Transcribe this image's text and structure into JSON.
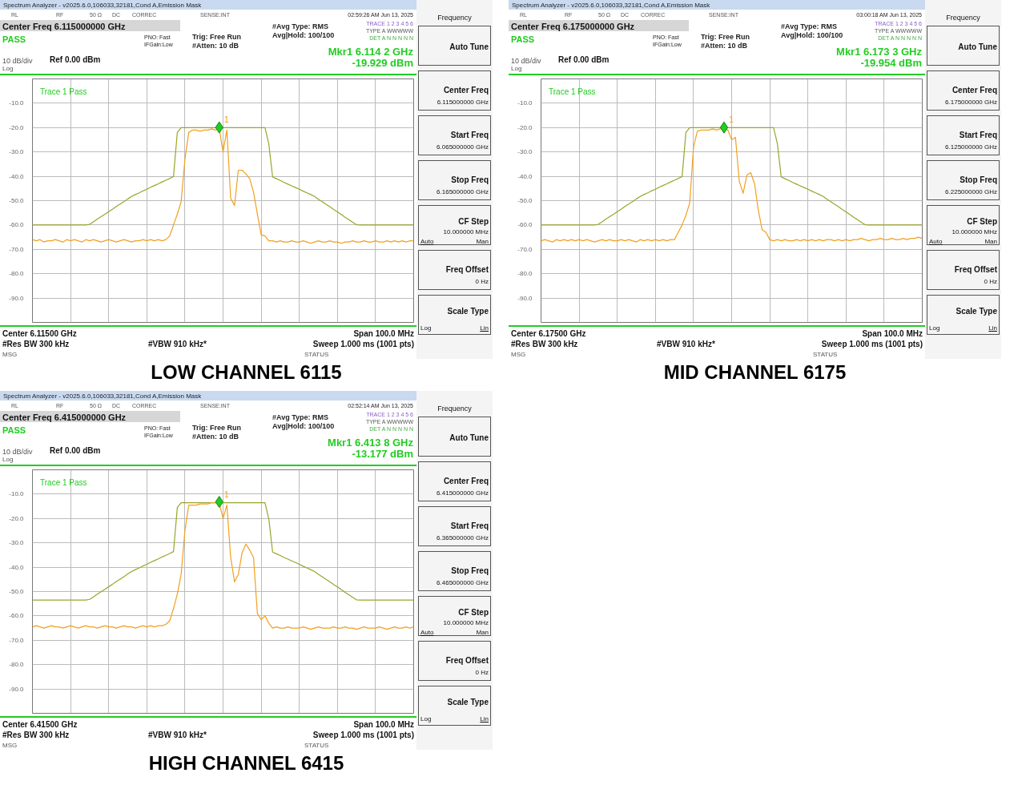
{
  "chart_data": [
    {
      "type": "line",
      "title": "LOW CHANNEL 6115",
      "categories": [
        null,
        null,
        null,
        null,
        null,
        null,
        null,
        null,
        null,
        null,
        null,
        null,
        null,
        null,
        null,
        null,
        null,
        null,
        null,
        null,
        null,
        null,
        null,
        null,
        null,
        null,
        null,
        null,
        null,
        null,
        null,
        null,
        null,
        null,
        null,
        null,
        null,
        null,
        null,
        null,
        null,
        null,
        null,
        null,
        null,
        null,
        null,
        null,
        null,
        null,
        null,
        null,
        null,
        null,
        null,
        null,
        null,
        null,
        null,
        null,
        null,
        null,
        null,
        null,
        null,
        null,
        null,
        null,
        null,
        null,
        null,
        null,
        null,
        null,
        null,
        null,
        null,
        null,
        null,
        null,
        null,
        null,
        null,
        null,
        null,
        null,
        null,
        null,
        null,
        null,
        null,
        null,
        null,
        null,
        null,
        null,
        null,
        null,
        null,
        null,
        null
      ],
      "ylim": [
        -100,
        0
      ],
      "yticks": [
        {
          "value": -10,
          "label": "-10.0"
        },
        {
          "value": -20,
          "label": "-20.0"
        },
        {
          "value": -30,
          "label": "-30.0"
        },
        {
          "value": -40,
          "label": "-40.0"
        },
        {
          "value": -50,
          "label": "-50.0"
        },
        {
          "value": -60,
          "label": "-60.0"
        },
        {
          "value": -70,
          "label": "-70.0"
        },
        {
          "value": -80,
          "label": "-80.0"
        },
        {
          "value": -90,
          "label": "-90.0"
        }
      ],
      "tick_labels": "y",
      "grid": true,
      "series": [
        {
          "color": "#9aa52a",
          "values": [
            -60,
            -60,
            -60,
            -60,
            -60,
            -60,
            -60,
            -60,
            -60,
            -60,
            -60,
            -60,
            -60,
            -60,
            -60,
            -59.7,
            -58.7,
            -57.6,
            -56.6,
            -55.6,
            -54.5,
            -53.5,
            -52.4,
            -51.4,
            -50.4,
            -49.3,
            -48.3,
            -47.5,
            -46.8,
            -46.0,
            -45.3,
            -44.5,
            -43.8,
            -43.1,
            -42.3,
            -41.6,
            -40.9,
            -40.1,
            -22,
            -20,
            -20,
            -20,
            -20,
            -20,
            -20,
            -20,
            -20,
            -20,
            -20,
            -20,
            -20,
            -20,
            -20,
            -20,
            -20,
            -20,
            -20,
            -20,
            -20,
            -20,
            -20,
            -20,
            -26.7,
            -40.3,
            -41.0,
            -41.7,
            -42.5,
            -43.2,
            -43.9,
            -44.6,
            -45.3,
            -46.1,
            -46.8,
            -47.5,
            -48.3,
            -49.4,
            -50.4,
            -51.5,
            -52.5,
            -53.6,
            -54.6,
            -55.7,
            -56.8,
            -57.8,
            -58.9,
            -59.9,
            -60,
            -60,
            -60,
            -60,
            -60,
            -60,
            -60,
            -60,
            -60,
            -60,
            -60,
            -60,
            -60,
            -60,
            -60
          ]
        },
        {
          "color": "#f2a01e",
          "values": [
            -66,
            -66.5,
            -66,
            -67,
            -66.5,
            -66.5,
            -66,
            -66.5,
            -67,
            -66,
            -66.5,
            -66,
            -66.5,
            -67,
            -66,
            -66.5,
            -66,
            -66.5,
            -67,
            -66.5,
            -66,
            -66.5,
            -67,
            -66.5,
            -66,
            -66.5,
            -67,
            -66.5,
            -66.5,
            -66,
            -66.5,
            -66,
            -66.5,
            -66,
            -66.5,
            -66,
            -64.5,
            -60,
            -55.5,
            -50.5,
            -33,
            -22,
            -21,
            -21,
            -21.5,
            -21,
            -21,
            -20.5,
            -21,
            -20.5,
            -30,
            -21,
            -49,
            -52,
            -37.5,
            -37.5,
            -39,
            -41,
            -46.5,
            -55.5,
            -64,
            -64.5,
            -66.5,
            -66.5,
            -67,
            -66.5,
            -67,
            -67,
            -66.5,
            -67,
            -67,
            -66.5,
            -67,
            -67.5,
            -67,
            -66.5,
            -67,
            -67,
            -66.5,
            -67,
            -67,
            -67.5,
            -67,
            -67,
            -66.5,
            -67,
            -67,
            -66.5,
            -67,
            -67,
            -66.5,
            -67,
            -67,
            -66.5,
            -67,
            -66.5,
            -67,
            -66.5,
            -67,
            -66.5,
            -66.5
          ]
        },
        {
          "type": "scatter",
          "marker": "diamond",
          "color": "#22cc22",
          "values": [
            null,
            null,
            null,
            null,
            null,
            null,
            null,
            null,
            null,
            null,
            null,
            null,
            null,
            null,
            null,
            null,
            null,
            null,
            null,
            null,
            null,
            null,
            null,
            null,
            null,
            null,
            null,
            null,
            null,
            null,
            null,
            null,
            null,
            null,
            null,
            null,
            null,
            null,
            null,
            null,
            null,
            null,
            null,
            null,
            null,
            null,
            null,
            null,
            null,
            -19.929,
            null,
            null,
            null,
            null,
            null,
            null,
            null,
            null,
            null,
            null,
            null,
            null,
            null,
            null,
            null,
            null,
            null,
            null,
            null,
            null,
            null,
            null,
            null,
            null,
            null,
            null,
            null,
            null,
            null,
            null,
            null,
            null,
            null,
            null,
            null,
            null,
            null,
            null,
            null,
            null,
            null,
            null,
            null,
            null,
            null,
            null,
            null,
            null,
            null,
            null,
            null
          ]
        }
      ],
      "annotations": [
        "Spectrum Analyzer - v2025.6.0,106033,32181,Cond A,Emission Mask",
        "RL",
        "RF",
        "50 Ω",
        "DC",
        "CORREC",
        "SENSE:INT",
        "02:59:26 AM Jun 13, 2025",
        "Center Freq 6.115000000 GHz",
        "PASS",
        "PNO: Fast",
        "IFGain:Low",
        "Trig: Free Run",
        "#Atten: 10 dB",
        "#Avg Type: RMS",
        "Avg|Hold: 100/100",
        "TRACE 1 2 3 4 5 6",
        "TYPE A WWWWW",
        "DET A N N N N N",
        "Mkr1 6.114 2 GHz",
        "-19.929 dBm",
        "10 dB/div",
        "Ref 0.00 dBm",
        "Log",
        "Trace 1 Pass",
        "Center 6.11500 GHz",
        "Span 100.0 MHz",
        "#Res BW 300 kHz",
        "#VBW 910 kHz*",
        "Sweep  1.000 ms (1001 pts)",
        "MSG",
        "STATUS",
        "Frequency",
        "Auto Tune",
        "Center Freq",
        "6.115000000 GHz",
        "Start Freq",
        "6.065000000 GHz",
        "Stop Freq",
        "6.165000000 GHz",
        "CF Step",
        "10.000000 MHz",
        "Auto",
        "Man",
        "Freq Offset",
        "0 Hz",
        "Scale Type",
        "Log",
        "Lin",
        "1"
      ]
    },
    {
      "type": "line",
      "title": "MID CHANNEL 6175",
      "categories": [
        null,
        null,
        null,
        null,
        null,
        null,
        null,
        null,
        null,
        null,
        null,
        null,
        null,
        null,
        null,
        null,
        null,
        null,
        null,
        null,
        null,
        null,
        null,
        null,
        null,
        null,
        null,
        null,
        null,
        null,
        null,
        null,
        null,
        null,
        null,
        null,
        null,
        null,
        null,
        null,
        null,
        null,
        null,
        null,
        null,
        null,
        null,
        null,
        null,
        null,
        null,
        null,
        null,
        null,
        null,
        null,
        null,
        null,
        null,
        null,
        null,
        null,
        null,
        null,
        null,
        null,
        null,
        null,
        null,
        null,
        null,
        null,
        null,
        null,
        null,
        null,
        null,
        null,
        null,
        null,
        null,
        null,
        null,
        null,
        null,
        null,
        null,
        null,
        null,
        null,
        null,
        null,
        null,
        null,
        null,
        null,
        null,
        null,
        null,
        null,
        null
      ],
      "ylim": [
        -100,
        0
      ],
      "yticks": [
        {
          "value": -10,
          "label": "-10.0"
        },
        {
          "value": -20,
          "label": "-20.0"
        },
        {
          "value": -30,
          "label": "-30.0"
        },
        {
          "value": -40,
          "label": "-40.0"
        },
        {
          "value": -50,
          "label": "-50.0"
        },
        {
          "value": -60,
          "label": "-60.0"
        },
        {
          "value": -70,
          "label": "-70.0"
        },
        {
          "value": -80,
          "label": "-80.0"
        },
        {
          "value": -90,
          "label": "-90.0"
        }
      ],
      "tick_labels": "y",
      "grid": true,
      "series": [
        {
          "color": "#9aa52a",
          "values": [
            -60,
            -60,
            -60,
            -60,
            -60,
            -60,
            -60,
            -60,
            -60,
            -60,
            -60,
            -60,
            -60,
            -60,
            -60,
            -59.7,
            -58.7,
            -57.6,
            -56.6,
            -55.6,
            -54.5,
            -53.5,
            -52.4,
            -51.4,
            -50.4,
            -49.3,
            -48.3,
            -47.5,
            -46.8,
            -46.0,
            -45.3,
            -44.5,
            -43.8,
            -43.1,
            -42.3,
            -41.6,
            -40.9,
            -40.1,
            -22,
            -20,
            -20,
            -20,
            -20,
            -20,
            -20,
            -20,
            -20,
            -20,
            -20,
            -20,
            -20,
            -20,
            -20,
            -20,
            -20,
            -20,
            -20,
            -20,
            -20,
            -20,
            -20,
            -20,
            -26.7,
            -40.3,
            -41.0,
            -41.7,
            -42.5,
            -43.2,
            -43.9,
            -44.6,
            -45.3,
            -46.1,
            -46.8,
            -47.5,
            -48.3,
            -49.4,
            -50.4,
            -51.5,
            -52.5,
            -53.6,
            -54.6,
            -55.7,
            -56.8,
            -57.8,
            -58.9,
            -59.9,
            -60,
            -60,
            -60,
            -60,
            -60,
            -60,
            -60,
            -60,
            -60,
            -60,
            -60,
            -60,
            -60,
            -60,
            -60
          ]
        },
        {
          "color": "#f2a01e",
          "values": [
            -66.5,
            -66,
            -66.5,
            -67,
            -66,
            -66.5,
            -66,
            -66.5,
            -66,
            -66.5,
            -66,
            -66.5,
            -66,
            -66.5,
            -67,
            -66.5,
            -66,
            -66.5,
            -66,
            -66.5,
            -66.5,
            -66,
            -66.5,
            -66,
            -66.5,
            -67,
            -66,
            -66.5,
            -66,
            -66.5,
            -66,
            -66.5,
            -66,
            -66.5,
            -66,
            -66,
            -63,
            -60,
            -56,
            -51,
            -28,
            -21.5,
            -21,
            -21,
            -21,
            -20.5,
            -21,
            -20.5,
            -20.5,
            -21,
            -25,
            -24,
            -42,
            -47,
            -39.5,
            -38.5,
            -43,
            -54,
            -62,
            -63,
            -66,
            -66.5,
            -66,
            -66.5,
            -66,
            -66.5,
            -66.5,
            -66,
            -66.5,
            -66,
            -66.5,
            -66,
            -66.5,
            -66,
            -66.5,
            -66,
            -66,
            -66.5,
            -66,
            -66.5,
            -66,
            -66.5,
            -66,
            -66,
            -65.5,
            -66,
            -66.5,
            -66,
            -66,
            -65.5,
            -66,
            -66,
            -65.5,
            -66,
            -66,
            -65.5,
            -66,
            -65.5,
            -65.5,
            -65,
            -65.5
          ]
        },
        {
          "type": "scatter",
          "marker": "diamond",
          "color": "#22cc22",
          "values": [
            null,
            null,
            null,
            null,
            null,
            null,
            null,
            null,
            null,
            null,
            null,
            null,
            null,
            null,
            null,
            null,
            null,
            null,
            null,
            null,
            null,
            null,
            null,
            null,
            null,
            null,
            null,
            null,
            null,
            null,
            null,
            null,
            null,
            null,
            null,
            null,
            null,
            null,
            null,
            null,
            null,
            null,
            null,
            null,
            null,
            null,
            null,
            null,
            -19.954,
            null,
            null,
            null,
            null,
            null,
            null,
            null,
            null,
            null,
            null,
            null,
            null,
            null,
            null,
            null,
            null,
            null,
            null,
            null,
            null,
            null,
            null,
            null,
            null,
            null,
            null,
            null,
            null,
            null,
            null,
            null,
            null,
            null,
            null,
            null,
            null,
            null,
            null,
            null,
            null,
            null,
            null,
            null,
            null,
            null,
            null,
            null,
            null,
            null,
            null,
            null,
            null
          ]
        }
      ],
      "annotations": [
        "Spectrum Analyzer - v2025.6.0,106033,32181,Cond A,Emission Mask",
        "RL",
        "RF",
        "50 Ω",
        "DC",
        "CORREC",
        "SENSE:INT",
        "03:00:18 AM Jun 13, 2025",
        "Center Freq 6.175000000 GHz",
        "PASS",
        "PNO: Fast",
        "IFGain:Low",
        "Trig: Free Run",
        "#Atten: 10 dB",
        "#Avg Type: RMS",
        "Avg|Hold: 100/100",
        "TRACE 1 2 3 4 5 6",
        "TYPE A WWWWW",
        "DET A N N N N N",
        "Mkr1 6.173 3 GHz",
        "-19.954 dBm",
        "10 dB/div",
        "Ref 0.00 dBm",
        "Log",
        "Trace 1 Pass",
        "Center 6.17500 GHz",
        "Span 100.0 MHz",
        "#Res BW 300 kHz",
        "#VBW 910 kHz*",
        "Sweep  1.000 ms (1001 pts)",
        "MSG",
        "STATUS",
        "Frequency",
        "Auto Tune",
        "Center Freq",
        "6.175000000 GHz",
        "Start Freq",
        "6.125000000 GHz",
        "Stop Freq",
        "6.225000000 GHz",
        "CF Step",
        "10.000000 MHz",
        "Auto",
        "Man",
        "Freq Offset",
        "0 Hz",
        "Scale Type",
        "Log",
        "Lin",
        "1"
      ]
    },
    {
      "type": "line",
      "title": "HIGH CHANNEL 6415",
      "categories": [
        null,
        null,
        null,
        null,
        null,
        null,
        null,
        null,
        null,
        null,
        null,
        null,
        null,
        null,
        null,
        null,
        null,
        null,
        null,
        null,
        null,
        null,
        null,
        null,
        null,
        null,
        null,
        null,
        null,
        null,
        null,
        null,
        null,
        null,
        null,
        null,
        null,
        null,
        null,
        null,
        null,
        null,
        null,
        null,
        null,
        null,
        null,
        null,
        null,
        null,
        null,
        null,
        null,
        null,
        null,
        null,
        null,
        null,
        null,
        null,
        null,
        null,
        null,
        null,
        null,
        null,
        null,
        null,
        null,
        null,
        null,
        null,
        null,
        null,
        null,
        null,
        null,
        null,
        null,
        null,
        null,
        null,
        null,
        null,
        null,
        null,
        null,
        null,
        null,
        null,
        null,
        null,
        null,
        null,
        null,
        null,
        null,
        null,
        null,
        null,
        null
      ],
      "ylim": [
        -100,
        0
      ],
      "yticks": [
        {
          "value": -10,
          "label": "-10.0"
        },
        {
          "value": -20,
          "label": "-20.0"
        },
        {
          "value": -30,
          "label": "-30.0"
        },
        {
          "value": -40,
          "label": "-40.0"
        },
        {
          "value": -50,
          "label": "-50.0"
        },
        {
          "value": -60,
          "label": "-60.0"
        },
        {
          "value": -70,
          "label": "-70.0"
        },
        {
          "value": -80,
          "label": "-80.0"
        },
        {
          "value": -90,
          "label": "-90.0"
        }
      ],
      "tick_labels": "y",
      "grid": true,
      "series": [
        {
          "color": "#9aa52a",
          "values": [
            -53.5,
            -53.5,
            -53.5,
            -53.5,
            -53.5,
            -53.5,
            -53.5,
            -53.5,
            -53.5,
            -53.5,
            -53.5,
            -53.5,
            -53.5,
            -53.5,
            -53.5,
            -53.2,
            -52.2,
            -51.1,
            -50.1,
            -49.1,
            -48,
            -47,
            -45.9,
            -44.9,
            -43.9,
            -42.8,
            -41.8,
            -41,
            -40.3,
            -39.5,
            -38.8,
            -38,
            -37.3,
            -36.6,
            -35.8,
            -35.1,
            -34.4,
            -33.6,
            -15.5,
            -13.5,
            -13.5,
            -13.5,
            -13.5,
            -13.5,
            -13.5,
            -13.5,
            -13.5,
            -13.5,
            -13.5,
            -13.5,
            -13.5,
            -13.5,
            -13.5,
            -13.5,
            -13.5,
            -13.5,
            -13.5,
            -13.5,
            -13.5,
            -13.5,
            -13.5,
            -13.5,
            -20.2,
            -33.8,
            -34.5,
            -35.2,
            -36,
            -36.7,
            -37.4,
            -38.1,
            -38.8,
            -39.6,
            -40.3,
            -41,
            -41.8,
            -42.9,
            -43.9,
            -45,
            -46,
            -47.1,
            -48.1,
            -49.2,
            -50.3,
            -51.3,
            -52.4,
            -53.4,
            -53.5,
            -53.5,
            -53.5,
            -53.5,
            -53.5,
            -53.5,
            -53.5,
            -53.5,
            -53.5,
            -53.5,
            -53.5,
            -53.5,
            -53.5,
            -53.5,
            -53.5
          ]
        },
        {
          "color": "#f2a01e",
          "values": [
            -64.5,
            -64,
            -64.5,
            -65,
            -64.5,
            -64,
            -64.5,
            -64.5,
            -65,
            -64.5,
            -64,
            -64.5,
            -65,
            -64.5,
            -64,
            -64.5,
            -64.5,
            -65,
            -64.5,
            -64,
            -64.5,
            -64.5,
            -65,
            -64.5,
            -64,
            -64.5,
            -64.5,
            -65,
            -64.5,
            -64,
            -64.5,
            -64,
            -64.5,
            -64,
            -64,
            -63.5,
            -62,
            -57,
            -51,
            -43,
            -25,
            -14.5,
            -14.5,
            -14.5,
            -14,
            -14,
            -14,
            -13.5,
            -13.5,
            -13.5,
            -20,
            -14.5,
            -36,
            -46,
            -43,
            -34,
            -30.5,
            -33,
            -36,
            -59,
            -61.5,
            -60,
            -63,
            -65,
            -64.5,
            -65,
            -65,
            -64.5,
            -65,
            -65,
            -65,
            -64.5,
            -65,
            -65.5,
            -65,
            -64.5,
            -65,
            -65,
            -65,
            -64.5,
            -65,
            -65,
            -64.5,
            -65,
            -65,
            -65.5,
            -65,
            -64.5,
            -65,
            -65,
            -65,
            -64.5,
            -65,
            -65.5,
            -65,
            -64.5,
            -65,
            -65,
            -64.5,
            -65,
            -64.5
          ]
        },
        {
          "type": "scatter",
          "marker": "diamond",
          "color": "#22cc22",
          "values": [
            null,
            null,
            null,
            null,
            null,
            null,
            null,
            null,
            null,
            null,
            null,
            null,
            null,
            null,
            null,
            null,
            null,
            null,
            null,
            null,
            null,
            null,
            null,
            null,
            null,
            null,
            null,
            null,
            null,
            null,
            null,
            null,
            null,
            null,
            null,
            null,
            null,
            null,
            null,
            null,
            null,
            null,
            null,
            null,
            null,
            null,
            null,
            null,
            null,
            -13.177,
            null,
            null,
            null,
            null,
            null,
            null,
            null,
            null,
            null,
            null,
            null,
            null,
            null,
            null,
            null,
            null,
            null,
            null,
            null,
            null,
            null,
            null,
            null,
            null,
            null,
            null,
            null,
            null,
            null,
            null,
            null,
            null,
            null,
            null,
            null,
            null,
            null,
            null,
            null,
            null,
            null,
            null,
            null,
            null,
            null,
            null,
            null,
            null,
            null,
            null,
            null
          ]
        }
      ],
      "annotations": [
        "Spectrum Analyzer - v2025.6.0,106033,32181,Cond A,Emission Mask",
        "RL",
        "RF",
        "50 Ω",
        "DC",
        "CORREC",
        "SENSE:INT",
        "02:52:14 AM Jun 13, 2025",
        "Center Freq 6.415000000 GHz",
        "PASS",
        "PNO: Fast",
        "IFGain:Low",
        "Trig: Free Run",
        "#Atten: 10 dB",
        "#Avg Type: RMS",
        "Avg|Hold: 100/100",
        "TRACE 1 2 3 4 5 6",
        "TYPE A WWWWW",
        "DET A N N N N N",
        "Mkr1 6.413 8 GHz",
        "-13.177 dBm",
        "10 dB/div",
        "Ref 0.00 dBm",
        "Log",
        "Trace 1 Pass",
        "Center 6.41500 GHz",
        "Span 100.0 MHz",
        "#Res BW 300 kHz",
        "#VBW 910 kHz*",
        "Sweep  1.000 ms (1001 pts)",
        "MSG",
        "STATUS",
        "Frequency",
        "Auto Tune",
        "Center Freq",
        "6.415000000 GHz",
        "Start Freq",
        "6.365000000 GHz",
        "Stop Freq",
        "6.465000000 GHz",
        "CF Step",
        "10.000000 MHz",
        "Auto",
        "Man",
        "Freq Offset",
        "0 Hz",
        "Scale Type",
        "Log",
        "Lin",
        "1"
      ]
    }
  ]
}
